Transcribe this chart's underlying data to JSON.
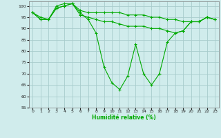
{
  "xlabel": "Humidité relative (%)",
  "bg_color": "#d0ecec",
  "grid_color": "#a8cccc",
  "line_color": "#00aa00",
  "xlim": [
    -0.5,
    23.5
  ],
  "ylim": [
    55,
    102
  ],
  "yticks": [
    55,
    60,
    65,
    70,
    75,
    80,
    85,
    90,
    95,
    100
  ],
  "xticks": [
    0,
    1,
    2,
    3,
    4,
    5,
    6,
    7,
    8,
    9,
    10,
    11,
    12,
    13,
    14,
    15,
    16,
    17,
    18,
    19,
    20,
    21,
    22,
    23
  ],
  "y_top": [
    97,
    95,
    94,
    100,
    101,
    101,
    98,
    97,
    97,
    97,
    97,
    97,
    96,
    96,
    96,
    95,
    95,
    94,
    94,
    93,
    93,
    93,
    95,
    94
  ],
  "y_mid": [
    97,
    94,
    94,
    99,
    100,
    101,
    96,
    95,
    94,
    93,
    93,
    92,
    91,
    91,
    91,
    90,
    90,
    89,
    88,
    89,
    93,
    93,
    95,
    94
  ],
  "y_low": [
    97,
    94,
    94,
    99,
    100,
    101,
    97,
    94,
    88,
    73,
    66,
    63,
    69,
    83,
    70,
    65,
    70,
    84,
    88,
    89,
    93,
    93,
    95,
    94
  ]
}
